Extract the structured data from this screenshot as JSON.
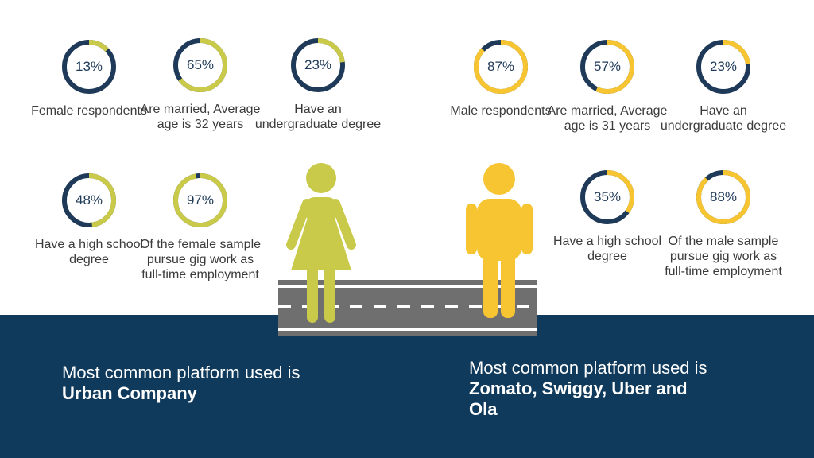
{
  "colors": {
    "navy": "#103a5c",
    "female_accent": "#c9c94a",
    "male_accent": "#f6c531",
    "ring_dark": "#1e3a58",
    "road": "#6f6f6f"
  },
  "female": {
    "stats": [
      {
        "percent": 13,
        "value": "13%",
        "label": "Female respondents"
      },
      {
        "percent": 65,
        "value": "65%",
        "label": "Are married, Average age is 32 years"
      },
      {
        "percent": 23,
        "value": "23%",
        "label": "Have an undergraduate degree"
      },
      {
        "percent": 48,
        "value": "48%",
        "label": "Have a high school degree"
      },
      {
        "percent": 97,
        "value": "97%",
        "label": "Of the female sample pursue gig work as full-time employment"
      }
    ],
    "platform_prefix": "Most common platform used is ",
    "platform_name": "Urban Company"
  },
  "male": {
    "stats": [
      {
        "percent": 87,
        "value": "87%",
        "label": "Male respondents"
      },
      {
        "percent": 57,
        "value": "57%",
        "label": "Are married, Average age is 31 years"
      },
      {
        "percent": 23,
        "value": "23%",
        "label": "Have an undergraduate degree"
      },
      {
        "percent": 35,
        "value": "35%",
        "label": "Have a high school degree"
      },
      {
        "percent": 88,
        "value": "88%",
        "label": "Of the male sample pursue gig work as full-time employment"
      }
    ],
    "platform_prefix": "Most common platform used is ",
    "platform_name": "Zomato, Swiggy, Uber and Ola"
  },
  "icons": {
    "female": "female-person-icon",
    "male": "male-person-icon",
    "road": "road-icon"
  }
}
